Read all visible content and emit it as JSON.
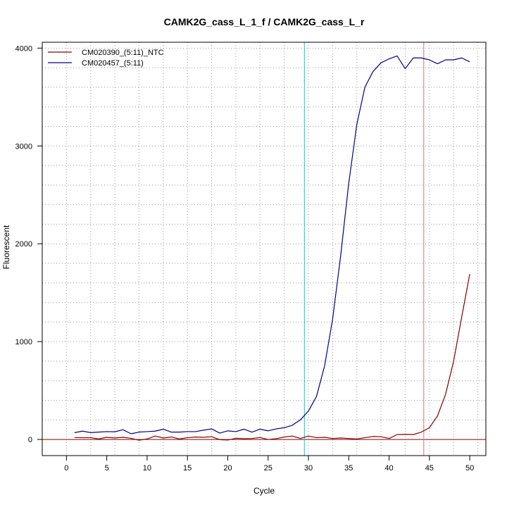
{
  "chart_data": {
    "type": "line",
    "title": "CAMK2G_cass_L_1_f / CAMK2G_cass_L_r",
    "xlabel": "Cycle",
    "ylabel": "Fluorescent",
    "xlim": [
      -3,
      52
    ],
    "ylim": [
      -165,
      4060
    ],
    "x_ticks": [
      0,
      5,
      10,
      15,
      20,
      25,
      30,
      35,
      40,
      45,
      50
    ],
    "y_ticks": [
      0,
      1000,
      2000,
      3000,
      4000
    ],
    "grid": true,
    "legend_position": "top-left",
    "colors": {
      "background": "#ffffff",
      "grid": "#9a9a9a",
      "baseline": "#8b0000",
      "vline_cyan": "#00cccc",
      "vline_red": "#e07070"
    },
    "reference_lines": {
      "horizontal_y": 0,
      "vertical_x": [
        29.5,
        44.3
      ]
    },
    "x": [
      1,
      2,
      3,
      4,
      5,
      6,
      7,
      8,
      9,
      10,
      11,
      12,
      13,
      14,
      15,
      16,
      17,
      18,
      19,
      20,
      21,
      22,
      23,
      24,
      25,
      26,
      27,
      28,
      29,
      30,
      31,
      32,
      33,
      34,
      35,
      36,
      37,
      38,
      39,
      40,
      41,
      42,
      43,
      44,
      45,
      46,
      47,
      48,
      49,
      50
    ],
    "series": [
      {
        "name": "CM020390_(5:11)_NTC",
        "color": "#8b0000",
        "values": [
          20,
          18,
          18,
          5,
          22,
          15,
          22,
          12,
          -8,
          5,
          35,
          15,
          25,
          5,
          18,
          25,
          22,
          28,
          -2,
          -6,
          12,
          8,
          10,
          20,
          0,
          8,
          25,
          35,
          10,
          35,
          18,
          22,
          10,
          15,
          10,
          5,
          18,
          30,
          28,
          10,
          50,
          52,
          50,
          75,
          120,
          240,
          460,
          800,
          1250,
          1690
        ]
      },
      {
        "name": "CM020457_(5:11)",
        "color": "#00008b",
        "values": [
          70,
          85,
          70,
          75,
          80,
          78,
          100,
          58,
          75,
          80,
          85,
          105,
          75,
          75,
          80,
          80,
          95,
          108,
          65,
          88,
          80,
          105,
          75,
          105,
          88,
          108,
          120,
          145,
          200,
          290,
          440,
          750,
          1230,
          1880,
          2620,
          3220,
          3600,
          3760,
          3850,
          3890,
          3920,
          3790,
          3900,
          3900,
          3880,
          3840,
          3880,
          3880,
          3900,
          3860
        ]
      }
    ]
  }
}
